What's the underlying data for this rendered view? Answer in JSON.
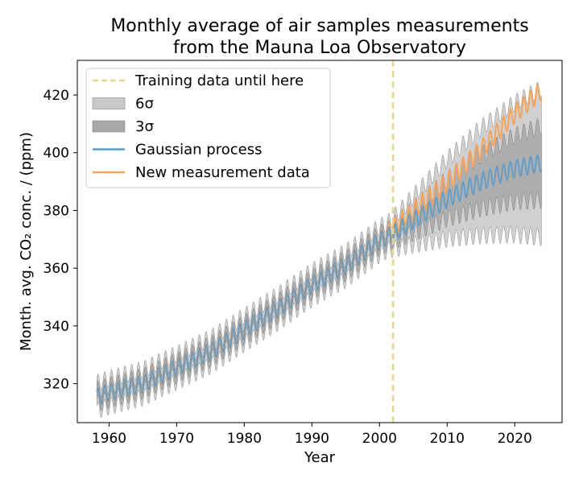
{
  "chart_data": {
    "type": "line",
    "title": [
      "Monthly average of air samples measurements",
      "from the Mauna Loa Observatory"
    ],
    "xlabel": "Year",
    "ylabel": "Month. avg. CO₂ conc. / (ppm)",
    "xlim": [
      1955.3,
      2027.0
    ],
    "ylim": [
      306.5,
      432.0
    ],
    "x_ticks": [
      1960,
      1970,
      1980,
      1990,
      2000,
      2010,
      2020
    ],
    "y_ticks": [
      320,
      340,
      360,
      380,
      400,
      420
    ],
    "grid": false,
    "legend_position": "top-left",
    "training_cutoff_year": 2002,
    "measurements": {
      "x_range": [
        1958.2,
        2024.0
      ],
      "trend_points": [
        [
          1958,
          315.3
        ],
        [
          1960,
          316.9
        ],
        [
          1965,
          320.0
        ],
        [
          1970,
          325.5
        ],
        [
          1975,
          331.0
        ],
        [
          1980,
          338.6
        ],
        [
          1985,
          346.0
        ],
        [
          1990,
          354.2
        ],
        [
          1995,
          360.8
        ],
        [
          2000,
          369.5
        ],
        [
          2005,
          379.8
        ],
        [
          2010,
          389.9
        ],
        [
          2015,
          401.0
        ],
        [
          2020,
          413.5
        ],
        [
          2024,
          421.5
        ]
      ],
      "seasonal_amplitude_ppm": 3.2
    },
    "gaussian_process": {
      "x_range": [
        1958.2,
        2024.0
      ],
      "trend_points": [
        [
          1958,
          315.3
        ],
        [
          1960,
          316.9
        ],
        [
          1965,
          320.0
        ],
        [
          1970,
          325.5
        ],
        [
          1975,
          331.0
        ],
        [
          1980,
          338.6
        ],
        [
          1985,
          346.0
        ],
        [
          1990,
          354.2
        ],
        [
          1995,
          360.8
        ],
        [
          2000,
          369.5
        ],
        [
          2002,
          372.0
        ],
        [
          2005,
          376.5
        ],
        [
          2010,
          384.0
        ],
        [
          2015,
          390.0
        ],
        [
          2020,
          394.5
        ],
        [
          2024,
          396.5
        ]
      ],
      "seasonal_amplitude_ppm": 3.0,
      "sigma_points": [
        [
          1958,
          0.8
        ],
        [
          2001.5,
          0.8
        ],
        [
          2005,
          1.4
        ],
        [
          2010,
          2.3
        ],
        [
          2015,
          3.1
        ],
        [
          2020,
          3.8
        ],
        [
          2024,
          4.3
        ]
      ]
    },
    "legend": [
      {
        "label": "Training data until here",
        "style": "dashed-line",
        "color": "#e4d98a"
      },
      {
        "label": "6σ",
        "style": "band",
        "color": "#c8c8c8"
      },
      {
        "label": "3σ",
        "style": "band",
        "color": "#a8a8a8"
      },
      {
        "label": "Gaussian process",
        "style": "line",
        "color": "#5b9bc9"
      },
      {
        "label": "New measurement data",
        "style": "line",
        "color": "#f5a45e"
      }
    ]
  }
}
